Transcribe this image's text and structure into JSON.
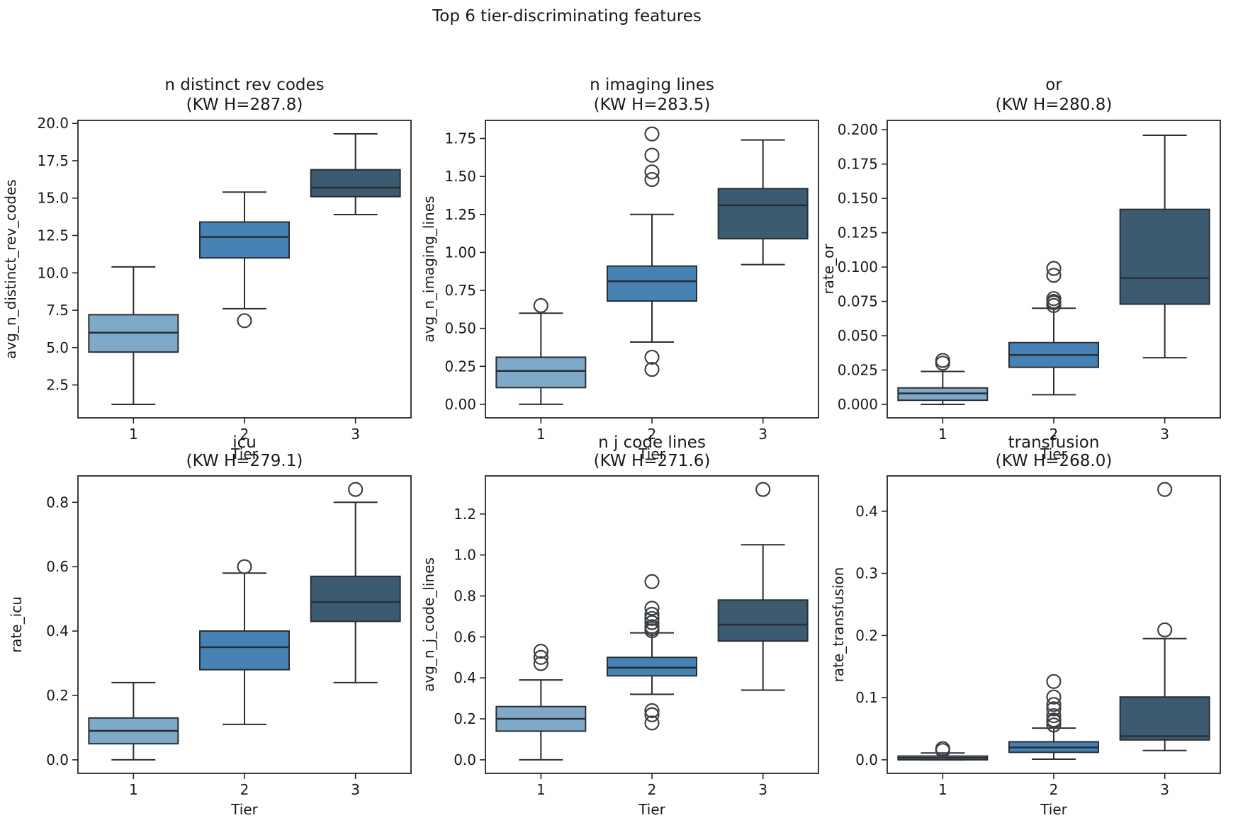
{
  "figure_title": "Top 6 tier-discriminating features",
  "colors": {
    "tier_fills": [
      "#7FA9C9",
      "#4682B4",
      "#3C5A70"
    ],
    "edge": "#2A2E33",
    "outlier": "#3D4145",
    "spine": "#262626",
    "text": "#1A1A1A",
    "background": "#FFFFFF"
  },
  "chart_data": [
    {
      "type": "box",
      "title": "n distinct rev codes",
      "subtitle": "(KW H=287.8)",
      "ylabel": "avg_n_distinct_rev_codes",
      "xlabel": "Tier",
      "categories": [
        "1",
        "2",
        "3"
      ],
      "legend": null,
      "grid": false,
      "ylim": [
        0.3,
        20.2
      ],
      "yticks": [
        2.5,
        5.0,
        7.5,
        10.0,
        12.5,
        15.0,
        17.5,
        20.0
      ],
      "ytick_labels": [
        "2.5",
        "5.0",
        "7.5",
        "10.0",
        "12.5",
        "15.0",
        "17.5",
        "20.0"
      ],
      "boxes": [
        {
          "tier": "1",
          "whislo": 1.2,
          "q1": 4.7,
          "med": 6.0,
          "q3": 7.2,
          "whishi": 10.4,
          "outliers": []
        },
        {
          "tier": "2",
          "whislo": 7.6,
          "q1": 11.0,
          "med": 12.4,
          "q3": 13.4,
          "whishi": 15.4,
          "outliers": [
            6.8
          ]
        },
        {
          "tier": "3",
          "whislo": 13.9,
          "q1": 15.1,
          "med": 15.7,
          "q3": 16.9,
          "whishi": 19.3,
          "outliers": []
        }
      ]
    },
    {
      "type": "box",
      "title": "n imaging lines",
      "subtitle": "(KW H=283.5)",
      "ylabel": "avg_n_imaging_lines",
      "xlabel": "Tier",
      "categories": [
        "1",
        "2",
        "3"
      ],
      "legend": null,
      "grid": false,
      "ylim": [
        -0.089,
        1.869
      ],
      "yticks": [
        0.0,
        0.25,
        0.5,
        0.75,
        1.0,
        1.25,
        1.5,
        1.75
      ],
      "ytick_labels": [
        "0.00",
        "0.25",
        "0.50",
        "0.75",
        "1.00",
        "1.25",
        "1.50",
        "1.75"
      ],
      "boxes": [
        {
          "tier": "1",
          "whislo": 0.0,
          "q1": 0.11,
          "med": 0.22,
          "q3": 0.31,
          "whishi": 0.6,
          "outliers": [
            0.65
          ]
        },
        {
          "tier": "2",
          "whislo": 0.41,
          "q1": 0.68,
          "med": 0.81,
          "q3": 0.91,
          "whishi": 1.25,
          "outliers": [
            1.78,
            1.64,
            1.53,
            1.48,
            0.31,
            0.23
          ]
        },
        {
          "tier": "3",
          "whislo": 0.92,
          "q1": 1.09,
          "med": 1.31,
          "q3": 1.42,
          "whishi": 1.74,
          "outliers": []
        }
      ]
    },
    {
      "type": "box",
      "title": "or",
      "subtitle": "(KW H=280.8)",
      "ylabel": "rate_or",
      "xlabel": "Tier",
      "categories": [
        "1",
        "2",
        "3"
      ],
      "legend": null,
      "grid": false,
      "ylim": [
        -0.0098,
        0.2068
      ],
      "yticks": [
        0.0,
        0.025,
        0.05,
        0.075,
        0.1,
        0.125,
        0.15,
        0.175,
        0.2
      ],
      "ytick_labels": [
        "0.000",
        "0.025",
        "0.050",
        "0.075",
        "0.100",
        "0.125",
        "0.150",
        "0.175",
        "0.200"
      ],
      "boxes": [
        {
          "tier": "1",
          "whislo": 0.0,
          "q1": 0.003,
          "med": 0.008,
          "q3": 0.012,
          "whishi": 0.024,
          "outliers": [
            0.03,
            0.032
          ]
        },
        {
          "tier": "2",
          "whislo": 0.007,
          "q1": 0.027,
          "med": 0.036,
          "q3": 0.045,
          "whishi": 0.07,
          "outliers": [
            0.072,
            0.074,
            0.075,
            0.077,
            0.094,
            0.099
          ]
        },
        {
          "tier": "3",
          "whislo": 0.034,
          "q1": 0.073,
          "med": 0.092,
          "q3": 0.142,
          "whishi": 0.196,
          "outliers": []
        }
      ]
    },
    {
      "type": "box",
      "title": "icu",
      "subtitle": "(KW H=279.1)",
      "ylabel": "rate_icu",
      "xlabel": "Tier",
      "categories": [
        "1",
        "2",
        "3"
      ],
      "legend": null,
      "grid": false,
      "ylim": [
        -0.042,
        0.882
      ],
      "yticks": [
        0.0,
        0.2,
        0.4,
        0.6,
        0.8
      ],
      "ytick_labels": [
        "0.0",
        "0.2",
        "0.4",
        "0.6",
        "0.8"
      ],
      "boxes": [
        {
          "tier": "1",
          "whislo": 0.0,
          "q1": 0.05,
          "med": 0.09,
          "q3": 0.13,
          "whishi": 0.24,
          "outliers": []
        },
        {
          "tier": "2",
          "whislo": 0.11,
          "q1": 0.28,
          "med": 0.35,
          "q3": 0.4,
          "whishi": 0.58,
          "outliers": [
            0.6
          ]
        },
        {
          "tier": "3",
          "whislo": 0.24,
          "q1": 0.43,
          "med": 0.49,
          "q3": 0.57,
          "whishi": 0.8,
          "outliers": [
            0.84
          ]
        }
      ]
    },
    {
      "type": "box",
      "title": "n j code lines",
      "subtitle": "(KW H=271.6)",
      "ylabel": "avg_n_j_code_lines",
      "xlabel": "Tier",
      "categories": [
        "1",
        "2",
        "3"
      ],
      "legend": null,
      "grid": false,
      "ylim": [
        -0.066,
        1.386
      ],
      "yticks": [
        0.0,
        0.2,
        0.4,
        0.6,
        0.8,
        1.0,
        1.2
      ],
      "ytick_labels": [
        "0.0",
        "0.2",
        "0.4",
        "0.6",
        "0.8",
        "1.0",
        "1.2"
      ],
      "boxes": [
        {
          "tier": "1",
          "whislo": 0.0,
          "q1": 0.14,
          "med": 0.2,
          "q3": 0.26,
          "whishi": 0.39,
          "outliers": [
            0.53,
            0.5,
            0.47
          ]
        },
        {
          "tier": "2",
          "whislo": 0.32,
          "q1": 0.41,
          "med": 0.45,
          "q3": 0.5,
          "whishi": 0.62,
          "outliers": [
            0.87,
            0.74,
            0.71,
            0.69,
            0.67,
            0.65,
            0.64,
            0.63,
            0.24,
            0.22,
            0.18
          ]
        },
        {
          "tier": "3",
          "whislo": 0.34,
          "q1": 0.58,
          "med": 0.66,
          "q3": 0.78,
          "whishi": 1.05,
          "outliers": [
            1.32
          ]
        }
      ]
    },
    {
      "type": "box",
      "title": "transfusion",
      "subtitle": "(KW H=268.0)",
      "ylabel": "rate_transfusion",
      "xlabel": "Tier",
      "categories": [
        "1",
        "2",
        "3"
      ],
      "legend": null,
      "grid": false,
      "ylim": [
        -0.0218,
        0.4568
      ],
      "yticks": [
        0.0,
        0.1,
        0.2,
        0.3,
        0.4
      ],
      "ytick_labels": [
        "0.0",
        "0.1",
        "0.2",
        "0.3",
        "0.4"
      ],
      "boxes": [
        {
          "tier": "1",
          "whislo": 0.0,
          "q1": 0.0,
          "med": 0.003,
          "q3": 0.006,
          "whishi": 0.011,
          "outliers": [
            0.015,
            0.018
          ]
        },
        {
          "tier": "2",
          "whislo": 0.001,
          "q1": 0.012,
          "med": 0.02,
          "q3": 0.029,
          "whishi": 0.051,
          "outliers": [
            0.126,
            0.101,
            0.089,
            0.082,
            0.071,
            0.064,
            0.062,
            0.056
          ]
        },
        {
          "tier": "3",
          "whislo": 0.015,
          "q1": 0.032,
          "med": 0.038,
          "q3": 0.101,
          "whishi": 0.195,
          "outliers": [
            0.209,
            0.435
          ]
        }
      ]
    }
  ]
}
